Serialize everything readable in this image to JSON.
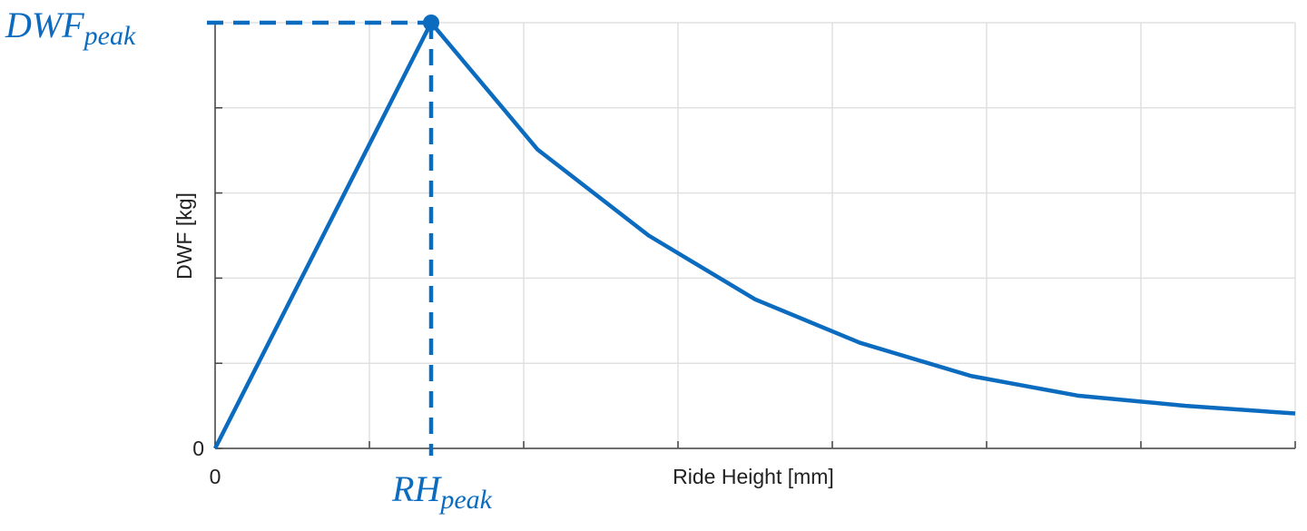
{
  "chart_data": {
    "type": "line",
    "x": [
      0,
      1.4,
      2.09,
      2.81,
      3.5,
      4.18,
      4.9,
      5.59,
      6.29,
      7.0
    ],
    "values": [
      0,
      5.0,
      3.51,
      2.5,
      1.75,
      1.24,
      0.85,
      0.62,
      0.5,
      0.41
    ],
    "color": "#0b6bbf",
    "xlim": [
      0,
      7
    ],
    "ylim": [
      0,
      5
    ],
    "xticks": [
      0,
      {
        "value": 1,
        "label": null
      },
      {
        "value": 2,
        "label": null
      },
      {
        "value": 3,
        "label": null
      },
      {
        "value": 4,
        "label": null
      },
      {
        "value": 5,
        "label": null
      },
      {
        "value": 6,
        "label": null
      },
      {
        "value": 7,
        "label": null
      }
    ],
    "yticks": [
      0,
      {
        "value": 1,
        "label": null
      },
      {
        "value": 2,
        "label": null
      },
      {
        "value": 3,
        "label": null
      },
      {
        "value": 4,
        "label": null
      },
      {
        "value": 5,
        "label": null
      }
    ],
    "grid": true,
    "xlabel": "Ride Height [mm]",
    "ylabel": "DWF [kg]",
    "annotations": {
      "y_peak": {
        "text": "DWF",
        "subscript": "peak"
      },
      "x_peak": {
        "text": "RH",
        "subscript": "peak"
      }
    }
  }
}
